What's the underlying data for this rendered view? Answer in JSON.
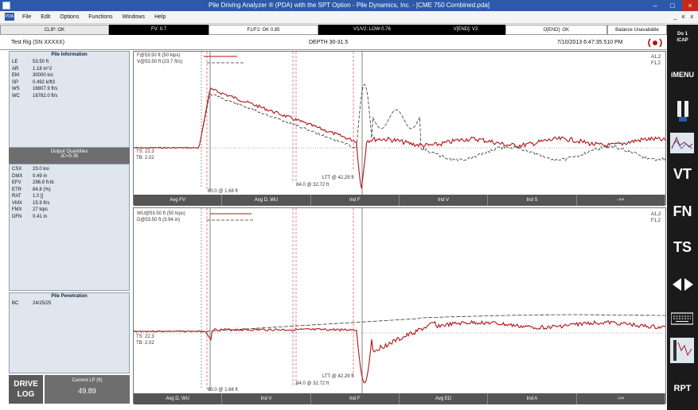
{
  "window": {
    "title": "Pile Driving Analyzer ® (PDA) with the SPT Option - Pile Dynamics, Inc. - [CME 750 Combined.pda]",
    "btn_min": "–",
    "btn_max": "□",
    "btn_close": "×",
    "app_min": "_",
    "app_max": "ĸ",
    "app_close": "x"
  },
  "menu": {
    "logo": "PDA",
    "items": [
      "File",
      "Edit",
      "Options",
      "Functions",
      "Windows",
      "Help"
    ]
  },
  "status": {
    "clip": "CLIP: OK",
    "fv": "FV: 0.7",
    "f1f2": "F1/F2: OK 0.85",
    "v1v2": "V1/V2: LOW 0.76",
    "vend": "V[END]: V2",
    "dend": "D[END]: OK",
    "balance": "Balance Unavailable"
  },
  "header": {
    "rig": "Test Rig (SN XXXXX)",
    "depth": "DEPTH 30-31.5",
    "datetime": "7/10/2013 6:47:35.510 PM"
  },
  "pile_info": {
    "title": "Pile Information",
    "rows": [
      [
        "LE",
        "53.50 ft"
      ],
      [
        "AR",
        "1.18 in^2"
      ],
      [
        "EM",
        "30000 ksi"
      ],
      [
        "SP",
        "0.492 k/ft3"
      ],
      [
        "WS",
        "16807.9 ft/s"
      ],
      [
        "WC",
        "16782.0 ft/s"
      ]
    ]
  },
  "output": {
    "title": "Output Quantities",
    "subtitle": "JC=0.35",
    "rows": [
      [
        "CSX",
        "23.0 ksi"
      ],
      [
        "DMX",
        "0.49 in"
      ],
      [
        "EFV",
        "296.9 ft-lb"
      ],
      [
        "ETR",
        "84.8 (%)"
      ],
      [
        "RAT",
        "1.0 []"
      ],
      [
        "VMX",
        "15.9 ft/s"
      ],
      [
        "FMX",
        "27 kips"
      ],
      [
        "DFN",
        "0.41 in"
      ]
    ]
  },
  "penetration": {
    "title": "Pile Penetration",
    "bc_label": "BC",
    "bc_value": "24/25/25"
  },
  "drive_log": {
    "line1": "DRIVE",
    "line2": "LOG",
    "lp_label": "Current LP (ft)",
    "lp_value": "49.89"
  },
  "chart1": {
    "legend1": "F@53.50 ft (50 kips)",
    "legend2": "V@53.50 ft (23.7 ft/s)",
    "ts": "TS: 22.3",
    "tb": "TB: 2.02",
    "ch1": "A1,2",
    "ch2": "F1,2",
    "m1": "60.0 @ 1.68 ft",
    "m2": "84.0 @ 32.72 ft",
    "m3": "LTT @ 42.29 ft",
    "tabs": [
      "Avg FV",
      "Avg D, WU",
      "Ind F",
      "Ind V",
      "Ind S",
      "->>"
    ]
  },
  "chart2": {
    "legend1": "WU@53.50 ft (50 kips)",
    "legend2": "D@53.50 ft (3.94 in)",
    "ts": "TS: 22.3",
    "tb": "TB: 2.02",
    "ch1": "A1,2",
    "ch2": "F1,2",
    "m1": "60.0 @ 1.68 ft",
    "m2": "84.0 @ 32.72 ft",
    "m3": "LTT @ 42.29 ft",
    "tabs": [
      "Avg D, WU",
      "Ind V",
      "Ind F",
      "Avg ED",
      "Ind A",
      "->>"
    ]
  },
  "rightbar": {
    "cap1": "Do 1",
    "cap2": "iCAP",
    "imenu": "iMENU",
    "vt": "VT",
    "fn": "FN",
    "ts": "TS",
    "rpt": "RPT"
  },
  "colors": {
    "force": "#b01515",
    "velocity": "#333333",
    "title_bar": "#2c5aa8",
    "panel": "#dfe6ee"
  }
}
